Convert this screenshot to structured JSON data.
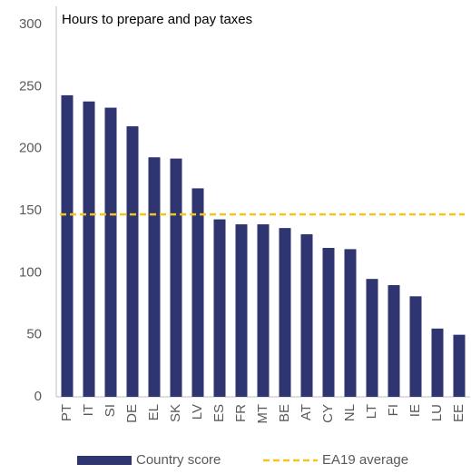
{
  "chart_data": {
    "type": "bar",
    "title": "Hours to prepare and pay taxes",
    "categories": [
      "PT",
      "IT",
      "SI",
      "DE",
      "EL",
      "SK",
      "LV",
      "ES",
      "FR",
      "MT",
      "BE",
      "AT",
      "CY",
      "NL",
      "LT",
      "FI",
      "IE",
      "LU",
      "EE"
    ],
    "series": [
      {
        "name": "Country score",
        "color": "#2e3571",
        "values": [
          243,
          238,
          233,
          218,
          193,
          192,
          168,
          143,
          139,
          139,
          136,
          131,
          120,
          119,
          95,
          90,
          81,
          55,
          50
        ]
      }
    ],
    "reference_line": {
      "name": "EA19 average",
      "value": 147,
      "color": "#f5c518"
    },
    "ylim": [
      0,
      300
    ],
    "yticks": [
      0,
      50,
      100,
      150,
      200,
      250,
      300
    ],
    "grid": false,
    "legend": "bottom"
  }
}
